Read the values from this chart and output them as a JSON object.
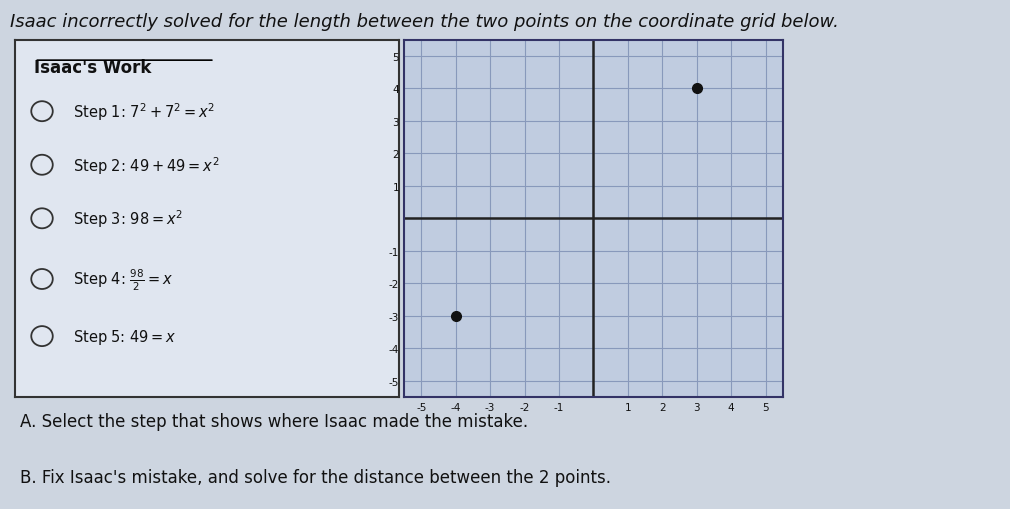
{
  "title": "Isaac incorrectly solved for the length between the two points on the coordinate grid below.",
  "title_fontsize": 13,
  "background_color": "#cdd5e0",
  "work_panel_bg": "#e0e6f0",
  "grid_panel_bg": "#c0cce0",
  "work_title": "Isaac's Work",
  "steps_text": [
    "Step 1: $7^2 + 7^2 = x^2$",
    "Step 2: $49 + 49 = x^2$",
    "Step 3: $98 = x^2$",
    "Step 4: $\\frac{98}{2} = x$",
    "Step 5: $49 = x$"
  ],
  "point1": [
    3,
    4
  ],
  "point2": [
    -4,
    -3
  ],
  "grid_xlim": [
    -5.5,
    5.5
  ],
  "grid_ylim": [
    -5.5,
    5.5
  ],
  "grid_color": "#8899bb",
  "axis_color": "#222222",
  "point_color": "#111111",
  "question_A": "A. Select the step that shows where Isaac made the mistake.",
  "question_B": "B. Fix Isaac's mistake, and solve for the distance between the 2 points.",
  "question_fontsize": 12
}
